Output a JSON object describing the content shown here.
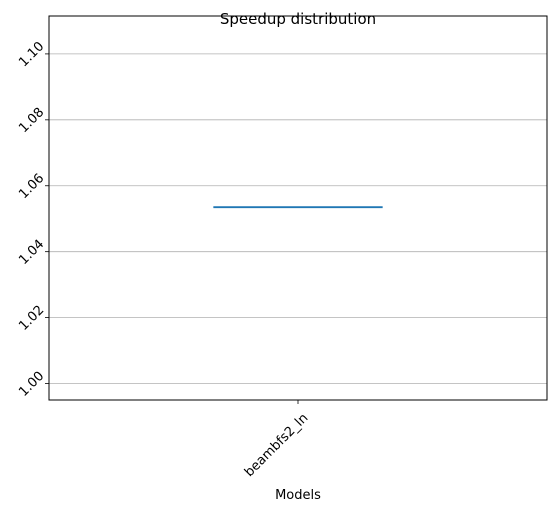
{
  "chart_data": {
    "type": "box",
    "title": "Speedup distribution",
    "xlabel": "Models",
    "ylabel": "",
    "categories": [
      "beambfs2_ln"
    ],
    "series": [
      {
        "values": [
          1.0535
        ]
      }
    ],
    "ylim": [
      0.995,
      1.1115
    ],
    "yticks": [
      1.0,
      1.02,
      1.04,
      1.06,
      1.08,
      1.1
    ],
    "ytick_labels": [
      "1.00",
      "1.02",
      "1.04",
      "1.06",
      "1.08",
      "1.10"
    ],
    "grid": "horizontal",
    "colors": {
      "median": "#1f77b4",
      "grid": "#b0b0b0",
      "axes": "#000000"
    }
  }
}
